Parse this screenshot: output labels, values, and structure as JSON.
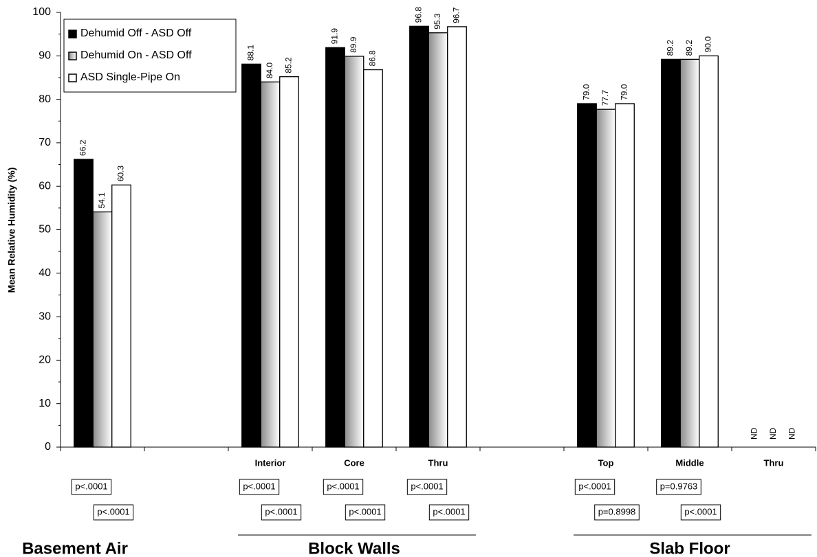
{
  "chart_data": {
    "type": "bar",
    "y_label": "Mean Relative Humidity (%)",
    "categories": [
      null,
      null,
      "Interior",
      "Core",
      "Thru",
      null,
      "Top",
      "Middle",
      "Thru"
    ],
    "series": [
      {
        "name": "Dehumid Off - ASD Off",
        "color": "#000000",
        "values": [
          66.2,
          null,
          88.1,
          91.9,
          96.8,
          null,
          79.0,
          89.2,
          null
        ],
        "value_labels": [
          "66.2",
          null,
          "88.1",
          "91.9",
          "96.8",
          null,
          "79.0",
          "89.2",
          "ND"
        ]
      },
      {
        "name": "Dehumid On - ASD Off",
        "color": "#8c8c8c",
        "gradient": true,
        "values": [
          54.1,
          null,
          84.0,
          89.9,
          95.3,
          null,
          77.7,
          89.2,
          null
        ],
        "value_labels": [
          "54.1",
          null,
          "84.0",
          "89.9",
          "95.3",
          null,
          "77.7",
          "89.2",
          "ND"
        ]
      },
      {
        "name": "ASD Single-Pipe On",
        "color": "#ffffff",
        "values": [
          60.3,
          null,
          85.2,
          86.8,
          96.7,
          null,
          79.0,
          90.0,
          null
        ],
        "value_labels": [
          "60.3",
          null,
          "85.2",
          "86.8",
          "96.7",
          null,
          "79.0",
          "90.0",
          "ND"
        ]
      }
    ],
    "p_values": [
      [
        "p<.0001",
        null,
        "p<.0001",
        "p<.0001",
        "p<.0001",
        null,
        "p<.0001",
        "p=0.9763",
        null
      ],
      [
        "p<.0001",
        null,
        "p<.0001",
        "p<.0001",
        "p<.0001",
        null,
        "p=0.8998",
        "p<.0001",
        null
      ]
    ],
    "groups": [
      {
        "label": "Basement Air",
        "span": 1
      },
      {
        "label": null,
        "span": 1
      },
      {
        "label": "Block Walls",
        "span": 3
      },
      {
        "label": null,
        "span": 1
      },
      {
        "label": "Slab Floor",
        "span": 3
      }
    ],
    "ylim": [
      0,
      100
    ],
    "yticks": [
      0,
      10,
      20,
      30,
      40,
      50,
      60,
      70,
      80,
      90,
      100
    ],
    "legend": "top-left"
  }
}
